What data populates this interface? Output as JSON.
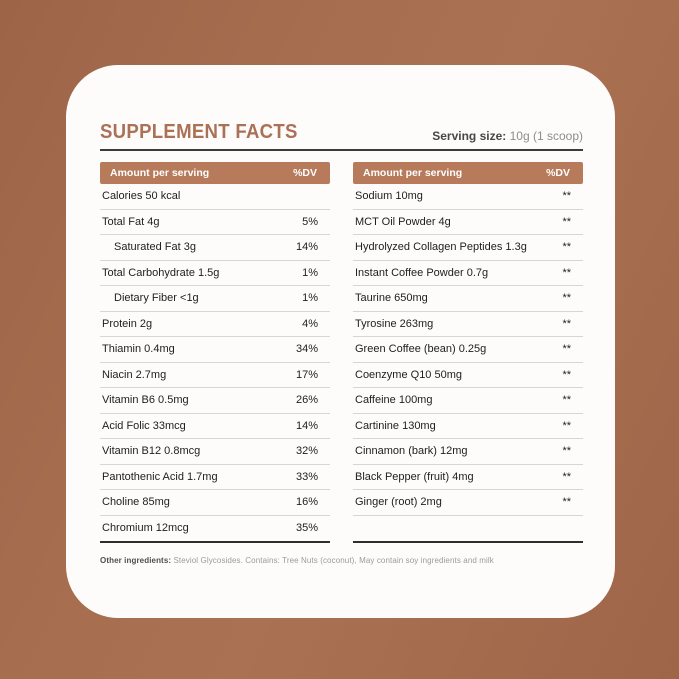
{
  "colors": {
    "background": "#a76d4f",
    "card": "#fdfcfb",
    "accent_bar": "#b77b5c",
    "title": "#ab7157",
    "rule_dark": "#2e2e2e",
    "separator": "#d6d6d6"
  },
  "header": {
    "title": "SUPPLEMENT FACTS",
    "serving_label": "Serving size:",
    "serving_value": "10g (1 scoop)"
  },
  "table_header": {
    "amount_label": "Amount per serving",
    "dv_label": "%DV"
  },
  "left_rows": [
    {
      "name": "Calories 50 kcal",
      "dv": "",
      "indent": false
    },
    {
      "name": "Total Fat 4g",
      "dv": "5%",
      "indent": false
    },
    {
      "name": "Saturated Fat 3g",
      "dv": "14%",
      "indent": true
    },
    {
      "name": "Total Carbohydrate 1.5g",
      "dv": "1%",
      "indent": false
    },
    {
      "name": "Dietary Fiber <1g",
      "dv": "1%",
      "indent": true
    },
    {
      "name": "Protein 2g",
      "dv": "4%",
      "indent": false
    },
    {
      "name": "Thiamin 0.4mg",
      "dv": "34%",
      "indent": false
    },
    {
      "name": "Niacin 2.7mg",
      "dv": "17%",
      "indent": false
    },
    {
      "name": "Vitamin B6 0.5mg",
      "dv": "26%",
      "indent": false
    },
    {
      "name": "Acid Folic 33mcg",
      "dv": "14%",
      "indent": false
    },
    {
      "name": "Vitamin B12 0.8mcg",
      "dv": "32%",
      "indent": false
    },
    {
      "name": "Pantothenic Acid 1.7mg",
      "dv": "33%",
      "indent": false
    },
    {
      "name": "Choline 85mg",
      "dv": "16%",
      "indent": false
    },
    {
      "name": "Chromium 12mcg",
      "dv": "35%",
      "indent": false
    }
  ],
  "right_rows": [
    {
      "name": "Sodium 10mg",
      "dv": "**",
      "indent": false
    },
    {
      "name": "MCT Oil Powder 4g",
      "dv": "**",
      "indent": false
    },
    {
      "name": "Hydrolyzed Collagen Peptides 1.3g",
      "dv": "**",
      "indent": false
    },
    {
      "name": "Instant Coffee Powder 0.7g",
      "dv": "**",
      "indent": false
    },
    {
      "name": "Taurine 650mg",
      "dv": "**",
      "indent": false
    },
    {
      "name": "Tyrosine 263mg",
      "dv": "**",
      "indent": false
    },
    {
      "name": "Green Coffee (bean) 0.25g",
      "dv": "**",
      "indent": false
    },
    {
      "name": "Coenzyme Q10 50mg",
      "dv": "**",
      "indent": false
    },
    {
      "name": "Caffeine 100mg",
      "dv": "**",
      "indent": false
    },
    {
      "name": "Cartinine 130mg",
      "dv": "**",
      "indent": false
    },
    {
      "name": "Cinnamon (bark) 12mg",
      "dv": "**",
      "indent": false
    },
    {
      "name": "Black Pepper (fruit) 4mg",
      "dv": "**",
      "indent": false
    },
    {
      "name": "Ginger (root) 2mg",
      "dv": "**",
      "indent": false
    }
  ],
  "footnote": {
    "label": "Other ingredients:",
    "text": "Steviol Glycosides. Contains: Tree Nuts (coconut), May contain soy ingredients and milk"
  }
}
